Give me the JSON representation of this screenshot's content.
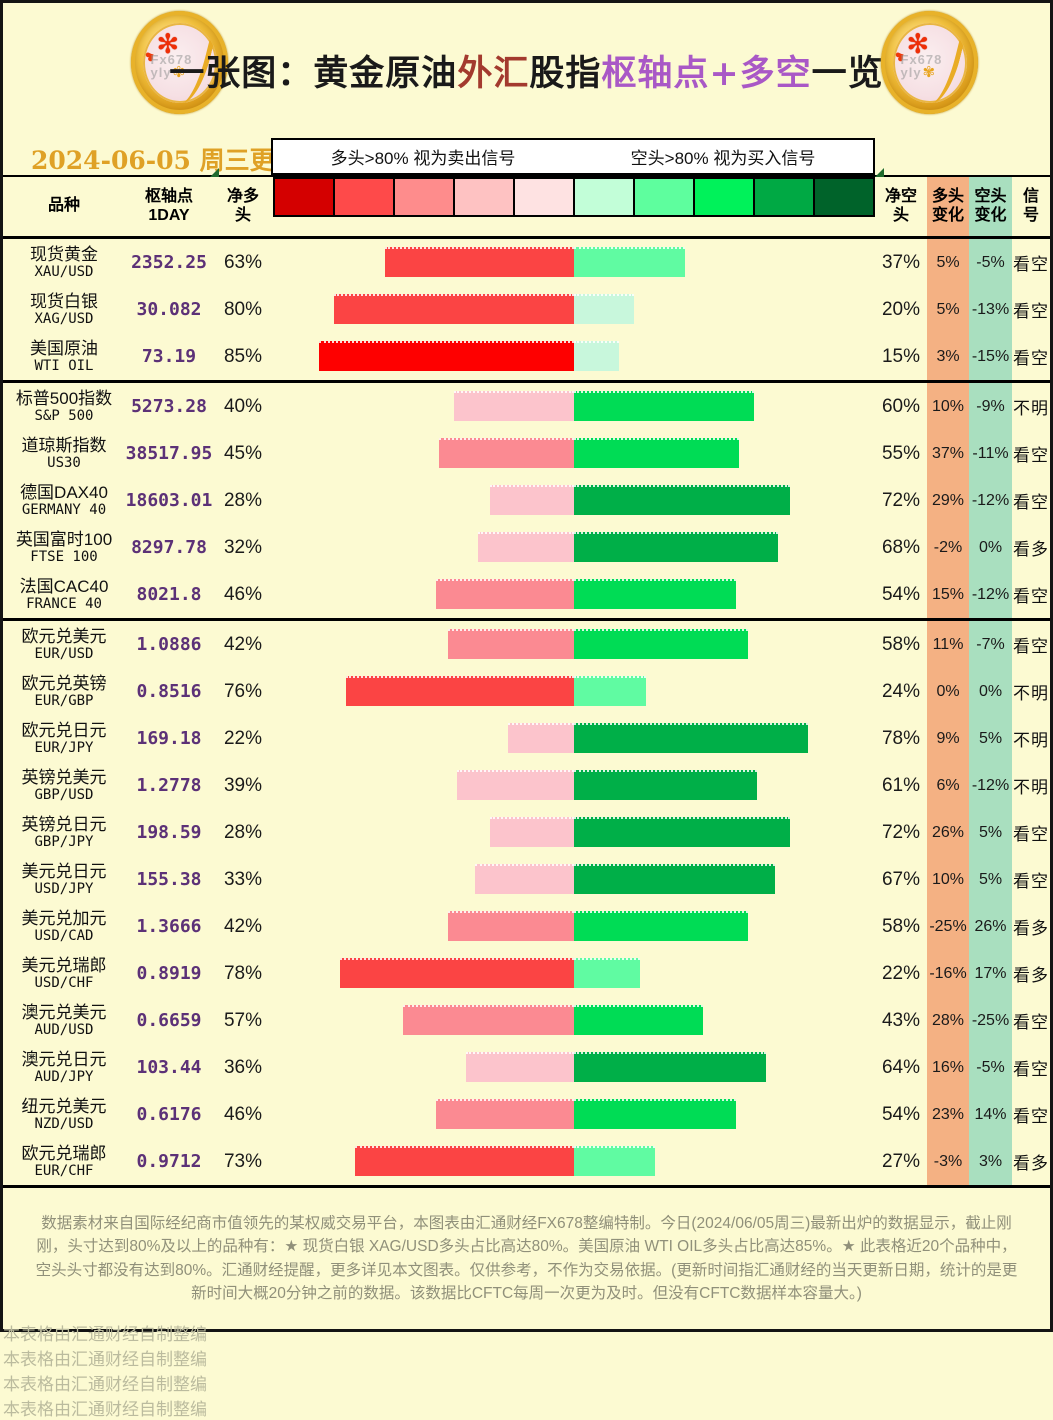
{
  "colors": {
    "page_bg": "#FCFAD2",
    "date_color": "#DFA126",
    "pivot_color": "#5C3177",
    "orange_col_bg": "#F4B183",
    "green_col_bg": "#A9DFBF",
    "scale_colors": [
      "#D40000",
      "#FE4A4A",
      "#FE8C8C",
      "#FEC2C2",
      "#FEE2E2",
      "#C2FED8",
      "#5EFE9E",
      "#00F25A",
      "#00A944",
      "#00632A"
    ],
    "bar_long_buckets": [
      "#FEE2E2",
      "#FCC4CC",
      "#FB8A92",
      "#FB4444",
      "#FE0000"
    ],
    "bar_short_buckets": [
      "#C8F7DC",
      "#60FBA2",
      "#00DC55",
      "#00AF48",
      "#00632A"
    ]
  },
  "header": {
    "title_segments": [
      {
        "text": "一张图：黄金原油",
        "color": "#1A1A1A"
      },
      {
        "text": "外汇",
        "color": "#A33A2E"
      },
      {
        "text": "股指",
        "color": "#1A1A1A"
      },
      {
        "text": "枢轴点+多空",
        "color": "#A958C6"
      },
      {
        "text": "一览",
        "color": "#1A1A1A"
      }
    ],
    "coin_watermark_line1": "Fx678",
    "coin_watermark_line2": "yly",
    "update_date": "2024-06-05 周三更新",
    "legend_long": "多头>80% 视为卖出信号",
    "legend_short": "空头>80% 视为买入信号"
  },
  "columns": {
    "variety": "品种",
    "pivot_l1": "枢轴点",
    "pivot_l2": "1DAY",
    "net_long_l1": "净多",
    "net_long_l2": "头",
    "net_short_l1": "净空",
    "net_short_l2": "头",
    "long_chg_l1": "多头",
    "long_chg_l2": "变化",
    "short_chg_l1": "空头",
    "short_chg_l2": "变化",
    "signal_l1": "信",
    "signal_l2": "号"
  },
  "group_breaks": [
    2,
    7
  ],
  "rows": [
    {
      "name_cn": "现货黄金",
      "code": "XAU/USD",
      "pivot": "2352.25",
      "net_long": 63,
      "net_short": 37,
      "long_chg": 5,
      "short_chg": -5,
      "signal": "看空"
    },
    {
      "name_cn": "现货白银",
      "code": "XAG/USD",
      "pivot": "30.082",
      "net_long": 80,
      "net_short": 20,
      "long_chg": 5,
      "short_chg": -13,
      "signal": "看空"
    },
    {
      "name_cn": "美国原油",
      "code": "WTI OIL",
      "pivot": "73.19",
      "net_long": 85,
      "net_short": 15,
      "long_chg": 3,
      "short_chg": -15,
      "signal": "看空"
    },
    {
      "name_cn": "标普500指数",
      "code": "S&P 500",
      "pivot": "5273.28",
      "net_long": 40,
      "net_short": 60,
      "long_chg": 10,
      "short_chg": -9,
      "signal": "不明"
    },
    {
      "name_cn": "道琼斯指数",
      "code": "US30",
      "pivot": "38517.95",
      "net_long": 45,
      "net_short": 55,
      "long_chg": 37,
      "short_chg": -11,
      "signal": "看空"
    },
    {
      "name_cn": "德国DAX40",
      "code": "GERMANY 40",
      "pivot": "18603.01",
      "net_long": 28,
      "net_short": 72,
      "long_chg": 29,
      "short_chg": -12,
      "signal": "看空"
    },
    {
      "name_cn": "英国富时100",
      "code": "FTSE 100",
      "pivot": "8297.78",
      "net_long": 32,
      "net_short": 68,
      "long_chg": -2,
      "short_chg": 0,
      "signal": "看多"
    },
    {
      "name_cn": "法国CAC40",
      "code": "FRANCE 40",
      "pivot": "8021.8",
      "net_long": 46,
      "net_short": 54,
      "long_chg": 15,
      "short_chg": -12,
      "signal": "看空"
    },
    {
      "name_cn": "欧元兑美元",
      "code": "EUR/USD",
      "pivot": "1.0886",
      "net_long": 42,
      "net_short": 58,
      "long_chg": 11,
      "short_chg": -7,
      "signal": "看空"
    },
    {
      "name_cn": "欧元兑英镑",
      "code": "EUR/GBP",
      "pivot": "0.8516",
      "net_long": 76,
      "net_short": 24,
      "long_chg": 0,
      "short_chg": 0,
      "signal": "不明"
    },
    {
      "name_cn": "欧元兑日元",
      "code": "EUR/JPY",
      "pivot": "169.18",
      "net_long": 22,
      "net_short": 78,
      "long_chg": 9,
      "short_chg": 5,
      "signal": "不明"
    },
    {
      "name_cn": "英镑兑美元",
      "code": "GBP/USD",
      "pivot": "1.2778",
      "net_long": 39,
      "net_short": 61,
      "long_chg": 6,
      "short_chg": -12,
      "signal": "不明"
    },
    {
      "name_cn": "英镑兑日元",
      "code": "GBP/JPY",
      "pivot": "198.59",
      "net_long": 28,
      "net_short": 72,
      "long_chg": 26,
      "short_chg": 5,
      "signal": "看空"
    },
    {
      "name_cn": "美元兑日元",
      "code": "USD/JPY",
      "pivot": "155.38",
      "net_long": 33,
      "net_short": 67,
      "long_chg": 10,
      "short_chg": 5,
      "signal": "看空"
    },
    {
      "name_cn": "美元兑加元",
      "code": "USD/CAD",
      "pivot": "1.3666",
      "net_long": 42,
      "net_short": 58,
      "long_chg": -25,
      "short_chg": 26,
      "signal": "看多"
    },
    {
      "name_cn": "美元兑瑞郎",
      "code": "USD/CHF",
      "pivot": "0.8919",
      "net_long": 78,
      "net_short": 22,
      "long_chg": -16,
      "short_chg": 17,
      "signal": "看多"
    },
    {
      "name_cn": "澳元兑美元",
      "code": "AUD/USD",
      "pivot": "0.6659",
      "net_long": 57,
      "net_short": 43,
      "long_chg": 28,
      "short_chg": -25,
      "signal": "看空"
    },
    {
      "name_cn": "澳元兑日元",
      "code": "AUD/JPY",
      "pivot": "103.44",
      "net_long": 36,
      "net_short": 64,
      "long_chg": 16,
      "short_chg": -5,
      "signal": "看空"
    },
    {
      "name_cn": "纽元兑美元",
      "code": "NZD/USD",
      "pivot": "0.6176",
      "net_long": 46,
      "net_short": 54,
      "long_chg": 23,
      "short_chg": 14,
      "signal": "看空"
    },
    {
      "name_cn": "欧元兑瑞郎",
      "code": "EUR/CHF",
      "pivot": "0.9712",
      "net_long": 73,
      "net_short": 27,
      "long_chg": -3,
      "short_chg": 3,
      "signal": "看多"
    }
  ],
  "footer": {
    "note": "数据素材来自国际经纪商市值领先的某权威交易平台，本图表由汇通财经FX678整编特制。今日(2024/06/05周三)最新出炉的数据显示，截止刚刚，头寸达到80%及以上的品种有：★ 现货白银 XAG/USD多头占比高达80%。美国原油 WTI OIL多头占比高达85%。★ 此表格近20个品种中，空头头寸都没有达到80%。汇通财经提醒，更多详见本文图表。仅供参考，不作为交易依据。(更新时间指汇通财经的当天更新日期，统计的是更新时间大概20分钟之前的数据。该数据比CFTC每周一次更为及时。但没有CFTC数据样本容量大。)",
    "watermark": "本表格由汇通财经自制整编",
    "watermark_count": 4
  },
  "chart_data": {
    "type": "bar",
    "subtype": "diverging-horizontal",
    "title": "一张图：黄金原油外汇股指枢轴点+多空一览",
    "update_date": "2024-06-05 周三更新",
    "legend": [
      "多头>80% 视为卖出信号",
      "空头>80% 视为买入信号"
    ],
    "categories": [
      "XAU/USD",
      "XAG/USD",
      "WTI OIL",
      "S&P 500",
      "US30",
      "GERMANY 40",
      "FTSE 100",
      "FRANCE 40",
      "EUR/USD",
      "EUR/GBP",
      "EUR/JPY",
      "GBP/USD",
      "GBP/JPY",
      "USD/JPY",
      "USD/CAD",
      "USD/CHF",
      "AUD/USD",
      "AUD/JPY",
      "NZD/USD",
      "EUR/CHF"
    ],
    "category_names_cn": [
      "现货黄金",
      "现货白银",
      "美国原油",
      "标普500指数",
      "道琼斯指数",
      "德国DAX40",
      "英国富时100",
      "法国CAC40",
      "欧元兑美元",
      "欧元兑英镑",
      "欧元兑日元",
      "英镑兑美元",
      "英镑兑日元",
      "美元兑日元",
      "美元兑加元",
      "美元兑瑞郎",
      "澳元兑美元",
      "澳元兑日元",
      "纽元兑美元",
      "欧元兑瑞郎"
    ],
    "series": [
      {
        "name": "枢轴点1DAY",
        "values": [
          2352.25,
          30.082,
          73.19,
          5273.28,
          38517.95,
          18603.01,
          8297.78,
          8021.8,
          1.0886,
          0.8516,
          169.18,
          1.2778,
          198.59,
          155.38,
          1.3666,
          0.8919,
          0.6659,
          103.44,
          0.6176,
          0.9712
        ]
      },
      {
        "name": "净多头%",
        "values": [
          63,
          80,
          85,
          40,
          45,
          28,
          32,
          46,
          42,
          76,
          22,
          39,
          28,
          33,
          42,
          78,
          57,
          36,
          46,
          73
        ]
      },
      {
        "name": "净空头%",
        "values": [
          37,
          20,
          15,
          60,
          55,
          72,
          68,
          54,
          58,
          24,
          78,
          61,
          72,
          67,
          58,
          22,
          43,
          64,
          54,
          27
        ]
      },
      {
        "name": "多头变化%",
        "values": [
          5,
          5,
          3,
          10,
          37,
          29,
          -2,
          15,
          11,
          0,
          9,
          6,
          26,
          10,
          -25,
          -16,
          28,
          16,
          23,
          -3
        ]
      },
      {
        "name": "空头变化%",
        "values": [
          -5,
          -13,
          -15,
          -9,
          -11,
          -12,
          0,
          -12,
          -7,
          0,
          5,
          -12,
          5,
          5,
          26,
          17,
          -25,
          -5,
          14,
          3
        ]
      },
      {
        "name": "信号",
        "values": [
          "看空",
          "看空",
          "看空",
          "不明",
          "看空",
          "看空",
          "看多",
          "看空",
          "看空",
          "不明",
          "不明",
          "不明",
          "看空",
          "看空",
          "看多",
          "看多",
          "看空",
          "看空",
          "看空",
          "看多"
        ]
      }
    ],
    "xlim": [
      -100,
      100
    ],
    "bar_axis": "net_long_left_red_net_short_right_green",
    "grid": false,
    "legend_position": "top"
  }
}
